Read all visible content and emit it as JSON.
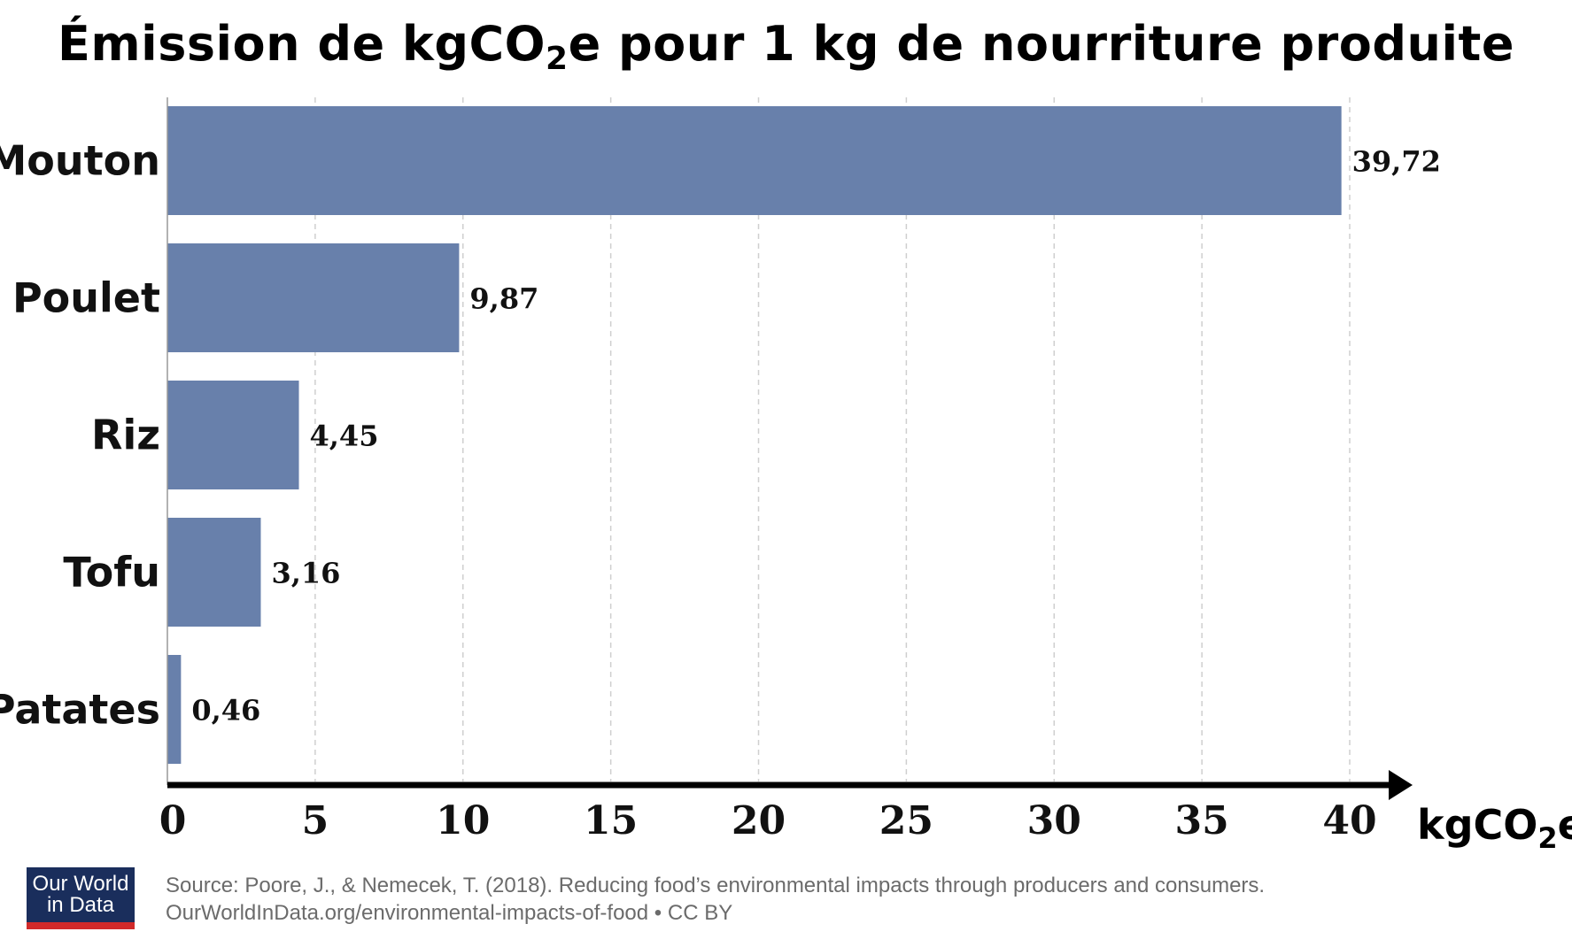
{
  "title": {
    "before": "Émission de kgCO",
    "sub": "2",
    "after": "e pour 1 kg de nourriture produite"
  },
  "chart_data": {
    "type": "bar",
    "orientation": "horizontal",
    "categories": [
      "Mouton",
      "Poulet",
      "Riz",
      "Tofu",
      "Patates"
    ],
    "values": [
      39.72,
      9.87,
      4.45,
      3.16,
      0.46
    ],
    "value_labels": [
      "39,72",
      "9,87",
      "4,45",
      "3,16",
      "0,46"
    ],
    "xticks": [
      0,
      5,
      10,
      15,
      20,
      25,
      30,
      35,
      40
    ],
    "xlim": [
      0,
      40
    ],
    "xlabel": {
      "before": "kgCO",
      "sub": "2",
      "after": "e"
    },
    "grid": "vertical dashed",
    "bar_color": "#6880ab"
  },
  "logo": {
    "line1": "Our World",
    "line2": "in Data"
  },
  "source": {
    "line1": "Source: Poore, J., & Nemecek, T. (2018). Reducing food’s environmental impacts through producers and consumers.",
    "line2": "OurWorldInData.org/environmental-impacts-of-food • CC BY"
  }
}
